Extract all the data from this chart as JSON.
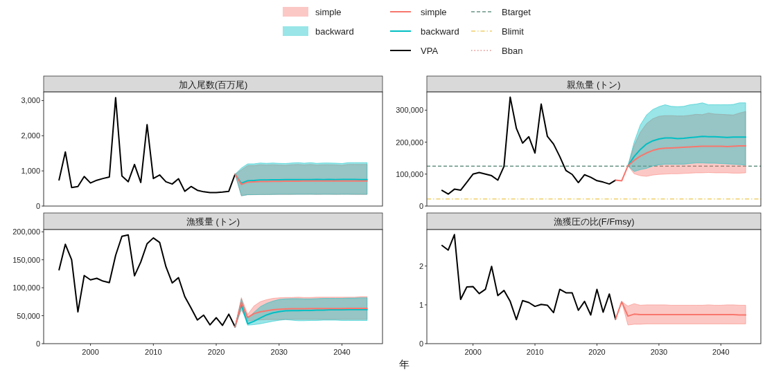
{
  "chart_data": [
    {
      "type": "line",
      "title": "加入尾数(百万尾)",
      "legend": "top",
      "tick_labels": "y",
      "xlim": [
        1992.55,
        2046.45
      ],
      "ylim": [
        0,
        3245
      ],
      "yticks": [
        0,
        {
          "value": 1000,
          "label": "1,000"
        },
        {
          "value": 2000,
          "label": "2,000"
        },
        {
          "value": 3000,
          "label": "3,000"
        }
      ],
      "series": [
        {
          "name": "simple",
          "color": "#f8766d",
          "x": [
            2023,
            2024,
            2025,
            2026,
            2027,
            2028,
            2029,
            2030,
            2031,
            2032,
            2033,
            2034,
            2035,
            2036,
            2037,
            2038,
            2039,
            2040,
            2041,
            2042,
            2043,
            2044
          ],
          "values": [
            905,
            613,
            680,
            690,
            700,
            700,
            705,
            705,
            708,
            708,
            710,
            712,
            712,
            715,
            712,
            715,
            712,
            715,
            715,
            715,
            712,
            712
          ],
          "lower": [
            905,
            290,
            320,
            322,
            325,
            325,
            328,
            330,
            330,
            330,
            332,
            332,
            333,
            330,
            332,
            332,
            330,
            332,
            332,
            330,
            330,
            330
          ],
          "upper": [
            905,
            1030,
            1150,
            1150,
            1175,
            1165,
            1175,
            1165,
            1160,
            1175,
            1185,
            1170,
            1185,
            1165,
            1175,
            1175,
            1170,
            1160,
            1185,
            1185,
            1185,
            1185
          ]
        },
        {
          "name": "backward",
          "color": "#00bfc4",
          "x": [
            2023,
            2024,
            2025,
            2026,
            2027,
            2028,
            2029,
            2030,
            2031,
            2032,
            2033,
            2034,
            2035,
            2036,
            2037,
            2038,
            2039,
            2040,
            2041,
            2042,
            2043,
            2044
          ],
          "values": [
            905,
            650,
            720,
            730,
            740,
            740,
            745,
            745,
            750,
            750,
            750,
            750,
            750,
            755,
            750,
            755,
            750,
            755,
            755,
            755,
            750,
            750
          ],
          "lower": [
            905,
            292,
            322,
            324,
            327,
            327,
            330,
            332,
            332,
            332,
            334,
            334,
            335,
            332,
            334,
            334,
            332,
            334,
            334,
            332,
            332,
            332
          ],
          "upper": [
            905,
            1080,
            1200,
            1200,
            1225,
            1215,
            1225,
            1215,
            1210,
            1225,
            1235,
            1220,
            1235,
            1215,
            1225,
            1225,
            1220,
            1210,
            1235,
            1235,
            1235,
            1235
          ]
        },
        {
          "name": "VPA",
          "color": "#000000",
          "x": [
            1995,
            1996,
            1997,
            1998,
            1999,
            2000,
            2001,
            2002,
            2003,
            2004,
            2005,
            2006,
            2007,
            2008,
            2009,
            2010,
            2011,
            2012,
            2013,
            2014,
            2015,
            2016,
            2017,
            2018,
            2019,
            2020,
            2021,
            2022,
            2023
          ],
          "values": [
            741,
            1539,
            527,
            556,
            841,
            656,
            734,
            784,
            827,
            3085,
            855,
            691,
            1183,
            670,
            2316,
            784,
            884,
            691,
            627,
            777,
            420,
            556,
            449,
            406,
            385,
            385,
            399,
            420,
            905
          ]
        }
      ]
    },
    {
      "type": "line",
      "title": "親魚量 (トン)",
      "tick_labels": "y",
      "xlim": [
        1992.55,
        2046.45
      ],
      "ylim": [
        0,
        357000
      ],
      "yticks": [
        0,
        {
          "value": 100000,
          "label": "100,000"
        },
        {
          "value": 200000,
          "label": "200,000"
        },
        {
          "value": 300000,
          "label": "300,000"
        }
      ],
      "ref_lines": [
        {
          "axis": "y",
          "value": 125000,
          "label": "Btarget",
          "color": "#1b5e45",
          "line_style": "dashed"
        },
        {
          "axis": "y",
          "value": 22000,
          "label": "Blimit",
          "color": "#e8b820",
          "line_style": "dashdot"
        },
        {
          "axis": "y",
          "value": null,
          "label": "Bban",
          "color": "#d9534f",
          "line_style": "dotted"
        }
      ],
      "series": [
        {
          "name": "simple",
          "color": "#f8766d",
          "x": [
            2023,
            2024,
            2025,
            2026,
            2027,
            2028,
            2029,
            2030,
            2031,
            2032,
            2033,
            2034,
            2035,
            2036,
            2037,
            2038,
            2039,
            2040,
            2041,
            2042,
            2043,
            2044
          ],
          "values": [
            81000,
            79000,
            126000,
            143000,
            156000,
            166000,
            174000,
            179000,
            181000,
            182000,
            183000,
            184000,
            185000,
            186000,
            187000,
            187000,
            187000,
            187000,
            186000,
            187000,
            188000,
            188000
          ],
          "lower": [
            81000,
            79000,
            126000,
            101000,
            95000,
            93000,
            97000,
            99000,
            100000,
            101000,
            101000,
            102000,
            103000,
            104000,
            104000,
            105000,
            104000,
            104000,
            104000,
            103000,
            103000,
            104000
          ],
          "upper": [
            81000,
            79000,
            126000,
            190000,
            231000,
            258000,
            273000,
            281000,
            283000,
            283000,
            282000,
            282000,
            284000,
            287000,
            286000,
            291000,
            288000,
            287000,
            286000,
            285000,
            291000,
            296000
          ]
        },
        {
          "name": "backward",
          "color": "#00bfc4",
          "x": [
            2025,
            2026,
            2027,
            2028,
            2029,
            2030,
            2031,
            2032,
            2033,
            2034,
            2035,
            2036,
            2037,
            2038,
            2039,
            2040,
            2041,
            2042,
            2043,
            2044
          ],
          "values": [
            126000,
            155000,
            177000,
            194000,
            204000,
            210000,
            213000,
            213000,
            211000,
            212000,
            214000,
            216000,
            218000,
            217000,
            217000,
            216000,
            215000,
            216000,
            216000,
            216000
          ],
          "lower": [
            126000,
            108000,
            114000,
            118000,
            125000,
            129000,
            131000,
            131000,
            131000,
            131000,
            133000,
            135000,
            135000,
            134000,
            134000,
            133000,
            132000,
            131000,
            130000,
            128000
          ],
          "upper": [
            126000,
            200000,
            254000,
            285000,
            302000,
            311000,
            317000,
            312000,
            311000,
            312000,
            317000,
            319000,
            323000,
            317000,
            317000,
            317000,
            317000,
            318000,
            323000,
            323000
          ]
        },
        {
          "name": "VPA",
          "color": "#000000",
          "x": [
            1995,
            1996,
            1997,
            1998,
            1999,
            2000,
            2001,
            2002,
            2003,
            2004,
            2005,
            2006,
            2007,
            2008,
            2009,
            2010,
            2011,
            2012,
            2013,
            2014,
            2015,
            2016,
            2017,
            2018,
            2019,
            2020,
            2021,
            2022,
            2023
          ],
          "values": [
            49000,
            37500,
            52800,
            49700,
            74200,
            100000,
            105000,
            100000,
            95000,
            81000,
            124000,
            341000,
            243000,
            197000,
            217000,
            166000,
            319000,
            218000,
            194000,
            155000,
            111000,
            99000,
            73500,
            98000,
            90000,
            79500,
            75000,
            69000,
            81000
          ]
        }
      ]
    },
    {
      "type": "line",
      "title": "漁獲量 (トン)",
      "xlim": [
        1992.55,
        2046.45
      ],
      "xticks": [
        2000,
        2010,
        2020,
        2030,
        2040
      ],
      "ylim": [
        0,
        204000
      ],
      "yticks": [
        0,
        {
          "value": 50000,
          "label": "50,000"
        },
        {
          "value": 100000,
          "label": "100,000"
        },
        {
          "value": 150000,
          "label": "150,000"
        },
        {
          "value": 200000,
          "label": "200,000"
        }
      ],
      "series": [
        {
          "name": "simple",
          "color": "#f8766d",
          "x": [
            2023,
            2024,
            2025,
            2026,
            2027,
            2028,
            2029,
            2030,
            2031,
            2032,
            2033,
            2034,
            2035,
            2036,
            2037,
            2038,
            2039,
            2040,
            2041,
            2042,
            2043,
            2044
          ],
          "values": [
            30000,
            74000,
            46800,
            53600,
            56800,
            58600,
            60500,
            61400,
            62000,
            62300,
            62500,
            62500,
            62600,
            62700,
            62800,
            62800,
            62900,
            62900,
            63000,
            63000,
            63000,
            63000
          ],
          "lower": [
            30000,
            60000,
            40000,
            42000,
            42500,
            43000,
            43000,
            43000,
            43500,
            43500,
            43500,
            43500,
            43500,
            43500,
            43500,
            43500,
            43500,
            43500,
            43500,
            43500,
            43500,
            43500
          ],
          "upper": [
            30000,
            82300,
            52300,
            67300,
            75000,
            78600,
            81000,
            82000,
            82500,
            82500,
            83000,
            82500,
            82500,
            83000,
            83000,
            83000,
            83000,
            83000,
            83000,
            83000,
            84000,
            84000
          ]
        },
        {
          "name": "backward",
          "color": "#00bfc4",
          "x": [
            2023,
            2024,
            2025,
            2026,
            2027,
            2028,
            2029,
            2030,
            2031,
            2032,
            2033,
            2034,
            2035,
            2036,
            2037,
            2038,
            2039,
            2040,
            2041,
            2042,
            2043,
            2044
          ],
          "values": [
            30000,
            69500,
            35500,
            40000,
            46000,
            51400,
            55000,
            57300,
            58600,
            59000,
            59000,
            59500,
            59500,
            60000,
            60000,
            60500,
            60500,
            60500,
            61000,
            61000,
            61000,
            61000
          ],
          "lower": [
            30000,
            65000,
            33000,
            34000,
            35500,
            37700,
            40000,
            41800,
            43000,
            42000,
            41000,
            41000,
            41500,
            41500,
            42000,
            42000,
            42000,
            41500,
            41500,
            41500,
            41500,
            41400
          ],
          "upper": [
            30000,
            80000,
            45000,
            56000,
            66000,
            72000,
            76000,
            79000,
            80000,
            80500,
            80500,
            80000,
            80000,
            80500,
            81000,
            81000,
            81000,
            81000,
            81500,
            81500,
            82000,
            82000
          ]
        },
        {
          "name": "VPA",
          "color": "#000000",
          "x": [
            1995,
            1996,
            1997,
            1998,
            1999,
            2000,
            2001,
            2002,
            2003,
            2004,
            2005,
            2006,
            2007,
            2008,
            2009,
            2010,
            2011,
            2012,
            2013,
            2014,
            2015,
            2016,
            2017,
            2018,
            2019,
            2020,
            2021,
            2022,
            2023
          ],
          "values": [
            132000,
            177700,
            150000,
            56800,
            121800,
            114000,
            116800,
            111800,
            109000,
            158000,
            192000,
            194500,
            121400,
            146000,
            178600,
            189000,
            181000,
            137700,
            108600,
            118000,
            84000,
            63600,
            42300,
            51000,
            33600,
            46400,
            32700,
            52700,
            30000
          ]
        }
      ]
    },
    {
      "type": "line",
      "title": "漁獲圧の比(F/Fmsy)",
      "xlabel": "年",
      "xlim": [
        1992.55,
        2046.45
      ],
      "xticks": [
        2000,
        2010,
        2020,
        2030,
        2040
      ],
      "ylim": [
        0,
        2.94
      ],
      "yticks": [
        0,
        1,
        2
      ],
      "series": [
        {
          "name": "simple",
          "color": "#f8766d",
          "x": [
            2023,
            2024,
            2025,
            2026,
            2027,
            2028,
            2029,
            2030,
            2031,
            2032,
            2033,
            2034,
            2035,
            2036,
            2037,
            2038,
            2039,
            2040,
            2041,
            2042,
            2043,
            2044
          ],
          "values": [
            0.63,
            1.08,
            0.71,
            0.76,
            0.75,
            0.75,
            0.75,
            0.75,
            0.75,
            0.75,
            0.75,
            0.75,
            0.75,
            0.75,
            0.75,
            0.75,
            0.75,
            0.75,
            0.75,
            0.75,
            0.74,
            0.74
          ],
          "lower": [
            0.63,
            1.08,
            0.48,
            0.5,
            0.5,
            0.51,
            0.51,
            0.51,
            0.51,
            0.51,
            0.51,
            0.51,
            0.51,
            0.51,
            0.51,
            0.51,
            0.51,
            0.51,
            0.51,
            0.51,
            0.51,
            0.51
          ],
          "upper": [
            0.63,
            1.08,
            0.97,
            1.03,
            0.99,
            1.0,
            1.0,
            1.0,
            1.0,
            0.99,
            0.99,
            0.99,
            0.99,
            0.99,
            0.99,
            1.0,
            0.99,
            0.99,
            1.0,
            1.0,
            0.99,
            0.99
          ]
        },
        {
          "name": "VPA",
          "color": "#000000",
          "x": [
            1995,
            1996,
            1997,
            1998,
            1999,
            2000,
            2001,
            2002,
            2003,
            2004,
            2005,
            2006,
            2007,
            2008,
            2009,
            2010,
            2011,
            2012,
            2013,
            2014,
            2015,
            2016,
            2017,
            2018,
            2019,
            2020,
            2021,
            2022,
            2023
          ],
          "values": [
            2.53,
            2.41,
            2.81,
            1.14,
            1.46,
            1.47,
            1.29,
            1.4,
            1.99,
            1.24,
            1.37,
            1.09,
            0.62,
            1.11,
            1.06,
            0.96,
            1.01,
            0.99,
            0.8,
            1.4,
            1.31,
            1.31,
            0.86,
            1.09,
            0.74,
            1.4,
            0.81,
            1.28,
            0.63
          ]
        }
      ]
    }
  ]
}
